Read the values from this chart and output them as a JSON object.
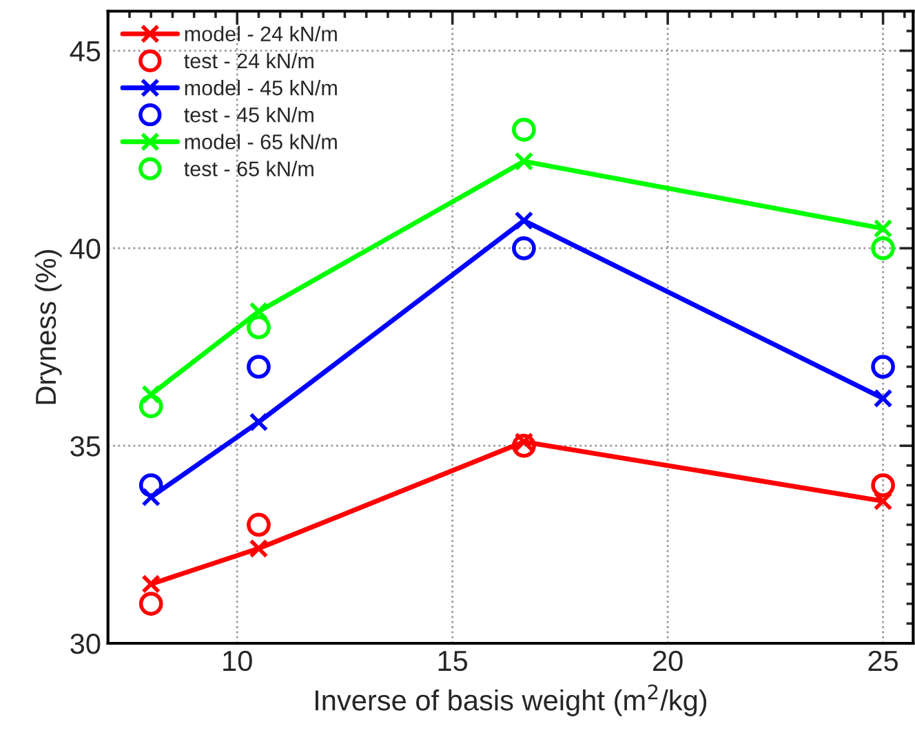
{
  "chart_data": {
    "type": "line",
    "xlabel": "Inverse of basis weight (m$^{2}$/kg)",
    "ylabel": "Dryness (%)",
    "x": [
      8,
      10.5,
      16.66,
      25
    ],
    "xlim": [
      7,
      25.7
    ],
    "xticks": [
      10,
      15,
      20,
      25
    ],
    "ylim": [
      30,
      46
    ],
    "yticks": [
      30,
      35,
      40,
      45
    ],
    "grid": true,
    "legend": "top left",
    "series": [
      {
        "name": "model - 24 kN/m",
        "marker": "cross",
        "color": "#ff0000",
        "values": [
          31.5,
          32.4,
          35.1,
          33.6
        ]
      },
      {
        "name": "test - 24 kN/m",
        "type": "scatter",
        "marker": "circle",
        "color": "#ff0000",
        "values": [
          31.0,
          33.0,
          35.0,
          34.0
        ]
      },
      {
        "name": "model - 45 kN/m",
        "marker": "cross",
        "color": "#0000ff",
        "values": [
          33.7,
          35.6,
          40.7,
          36.2
        ]
      },
      {
        "name": "test - 45 kN/m",
        "type": "scatter",
        "marker": "circle",
        "color": "#0000ff",
        "values": [
          34.0,
          37.0,
          40.0,
          37.0
        ]
      },
      {
        "name": "model - 65 kN/m",
        "marker": "cross",
        "color": "#00ff00",
        "values": [
          36.3,
          38.4,
          42.2,
          40.5
        ]
      },
      {
        "name": "test - 65 kN/m",
        "type": "scatter",
        "marker": "circle",
        "color": "#00ff00",
        "values": [
          36.0,
          38.0,
          43.0,
          40.0
        ]
      }
    ]
  }
}
